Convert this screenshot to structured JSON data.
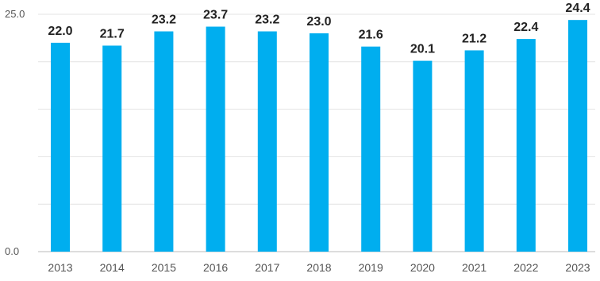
{
  "chart_data": {
    "type": "bar",
    "categories": [
      "2013",
      "2014",
      "2015",
      "2016",
      "2017",
      "2018",
      "2019",
      "2020",
      "2021",
      "2022",
      "2023"
    ],
    "values": [
      22.0,
      21.7,
      23.2,
      23.7,
      23.2,
      23.0,
      21.6,
      20.1,
      21.2,
      22.4,
      24.4
    ],
    "value_labels": [
      "22.0",
      "21.7",
      "23.2",
      "23.7",
      "23.2",
      "23.0",
      "21.6",
      "20.1",
      "21.2",
      "22.4",
      "24.4"
    ],
    "y_ticks": [
      "0.0",
      "25.0"
    ],
    "ylim": [
      0,
      25
    ],
    "grid": true,
    "bar_color": "#00aeef"
  }
}
